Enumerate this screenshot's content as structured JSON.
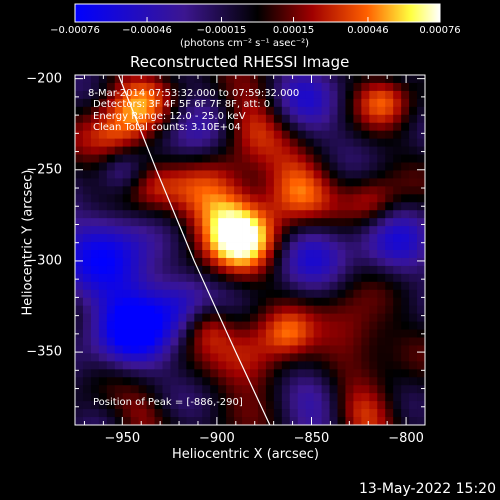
{
  "chart_data": {
    "type": "heatmap",
    "title": "Reconstructed RHESSI Image",
    "xlabel": "Heliocentric X (arcsec)",
    "ylabel": "Heliocentric Y (arcsec)",
    "xlim": [
      -975,
      -790
    ],
    "ylim": [
      -390,
      -198
    ],
    "x_ticks": [
      -950,
      -900,
      -850,
      -800
    ],
    "x_tick_labels": [
      "−950",
      "−900",
      "−850",
      "−800"
    ],
    "y_ticks": [
      -200,
      -250,
      -300,
      -350
    ],
    "y_tick_labels": [
      "−200",
      "−250",
      "−300",
      "−350"
    ],
    "colorbar": {
      "range": [
        -0.00076,
        0.00076
      ],
      "ticks": [
        -0.00076,
        -0.00046,
        -0.00015,
        0.00015,
        0.00046,
        0.00076
      ],
      "tick_labels": [
        "−0.00076",
        "−0.00046",
        "−0.00015",
        "0.00015",
        "0.00046",
        "0.00076"
      ],
      "unit_label": "(photons cm⁻² s⁻¹ asec⁻²)",
      "colors": [
        "#0000ff",
        "#3c1690",
        "#000000",
        "#a00000",
        "#ff6000",
        "#ffff40",
        "#ffffff"
      ]
    },
    "annotations": {
      "time_range": "8-Mar-2014 07:53:32.000 to 07:59:32.000",
      "detectors": "Detectors: 3F 4F 5F 6F 7F 8F, att: 0",
      "energy_range": "Energy Range: 12.0 - 25.0 keV",
      "method": "Clean    Total counts: 3.10E+04",
      "peak": "Position of Peak = [-886,-290]"
    },
    "peak": {
      "x": -886,
      "y": -290
    },
    "limb_curve": [
      [
        -952,
        -198
      ],
      [
        -932,
        -250
      ],
      [
        -912,
        -300
      ],
      [
        -890,
        -350
      ],
      [
        -872,
        -390
      ]
    ],
    "sources": [
      {
        "x": -888,
        "y": -287,
        "amp": 1.0,
        "r": 14
      },
      {
        "x": -908,
        "y": -268,
        "amp": 0.55,
        "r": 18
      },
      {
        "x": -940,
        "y": -215,
        "amp": 0.65,
        "r": 14
      },
      {
        "x": -955,
        "y": -235,
        "amp": 0.55,
        "r": 12
      },
      {
        "x": -935,
        "y": -258,
        "amp": 0.45,
        "r": 11
      },
      {
        "x": -858,
        "y": -262,
        "amp": 0.75,
        "r": 13
      },
      {
        "x": -882,
        "y": -225,
        "amp": 0.6,
        "r": 14
      },
      {
        "x": -812,
        "y": -212,
        "amp": 0.5,
        "r": 10
      },
      {
        "x": -818,
        "y": -268,
        "amp": 0.45,
        "r": 10
      },
      {
        "x": -830,
        "y": -340,
        "amp": 0.5,
        "r": 14
      },
      {
        "x": -880,
        "y": -355,
        "amp": 0.55,
        "r": 14
      },
      {
        "x": -862,
        "y": -340,
        "amp": 0.4,
        "r": 9
      },
      {
        "x": -820,
        "y": -385,
        "amp": 0.55,
        "r": 12
      },
      {
        "x": -905,
        "y": -335,
        "amp": 0.4,
        "r": 9
      },
      {
        "x": -940,
        "y": -385,
        "amp": 0.3,
        "r": 10
      },
      {
        "x": -915,
        "y": -230,
        "amp": -0.5,
        "r": 16
      },
      {
        "x": -855,
        "y": -215,
        "amp": -0.5,
        "r": 14
      },
      {
        "x": -955,
        "y": -300,
        "amp": -0.75,
        "r": 22
      },
      {
        "x": -945,
        "y": -340,
        "amp": -0.85,
        "r": 14
      },
      {
        "x": -920,
        "y": -325,
        "amp": -0.5,
        "r": 12
      },
      {
        "x": -850,
        "y": -295,
        "amp": -0.5,
        "r": 14
      },
      {
        "x": -805,
        "y": -290,
        "amp": -0.5,
        "r": 14
      },
      {
        "x": -848,
        "y": -375,
        "amp": -0.5,
        "r": 12
      },
      {
        "x": -950,
        "y": -250,
        "amp": -0.4,
        "r": 9
      }
    ]
  },
  "footer": {
    "timestamp": "13-May-2022 15:20"
  }
}
